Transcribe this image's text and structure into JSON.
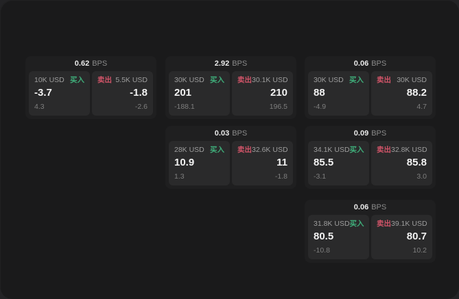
{
  "colors": {
    "buy_accent": "#3fae7a",
    "sell_accent": "#d05468",
    "window_bg": "#1a1a1b",
    "card_bg": "#1f1f20",
    "panel_bg": "#2a2a2b"
  },
  "cards": [
    {
      "bps_value": "0.62",
      "bps_unit": "BPS",
      "col": 0,
      "row": 0,
      "buy": {
        "amount": "10K USD",
        "tag": "买入",
        "price": "-3.7",
        "delta": "4.3"
      },
      "sell": {
        "tag": "卖出",
        "amount": "5.5K USD",
        "price": "-1.8",
        "delta": "-2.6"
      }
    },
    {
      "bps_value": "2.92",
      "bps_unit": "BPS",
      "col": 1,
      "row": 0,
      "buy": {
        "amount": "30K USD",
        "tag": "买入",
        "price": "201",
        "delta": "-188.1"
      },
      "sell": {
        "tag": "卖出",
        "amount": "30.1K USD",
        "price": "210",
        "delta": "196.5"
      }
    },
    {
      "bps_value": "0.06",
      "bps_unit": "BPS",
      "col": 2,
      "row": 0,
      "buy": {
        "amount": "30K USD",
        "tag": "买入",
        "price": "88",
        "delta": "-4.9"
      },
      "sell": {
        "tag": "卖出",
        "amount": "30K USD",
        "price": "88.2",
        "delta": "4.7"
      }
    },
    {
      "bps_value": "0.03",
      "bps_unit": "BPS",
      "col": 1,
      "row": 1,
      "buy": {
        "amount": "28K USD",
        "tag": "买入",
        "price": "10.9",
        "delta": "1.3"
      },
      "sell": {
        "tag": "卖出",
        "amount": "32.6K USD",
        "price": "11",
        "delta": "-1.8"
      }
    },
    {
      "bps_value": "0.09",
      "bps_unit": "BPS",
      "col": 2,
      "row": 1,
      "buy": {
        "amount": "34.1K USD",
        "tag": "买入",
        "price": "85.5",
        "delta": "-3.1"
      },
      "sell": {
        "tag": "卖出",
        "amount": "32.8K USD",
        "price": "85.8",
        "delta": "3.0"
      }
    },
    {
      "bps_value": "0.06",
      "bps_unit": "BPS",
      "col": 2,
      "row": 2,
      "buy": {
        "amount": "31.8K USD",
        "tag": "买入",
        "price": "80.5",
        "delta": "-10.8"
      },
      "sell": {
        "tag": "卖出",
        "amount": "39.1K USD",
        "price": "80.7",
        "delta": "10.2"
      }
    }
  ]
}
